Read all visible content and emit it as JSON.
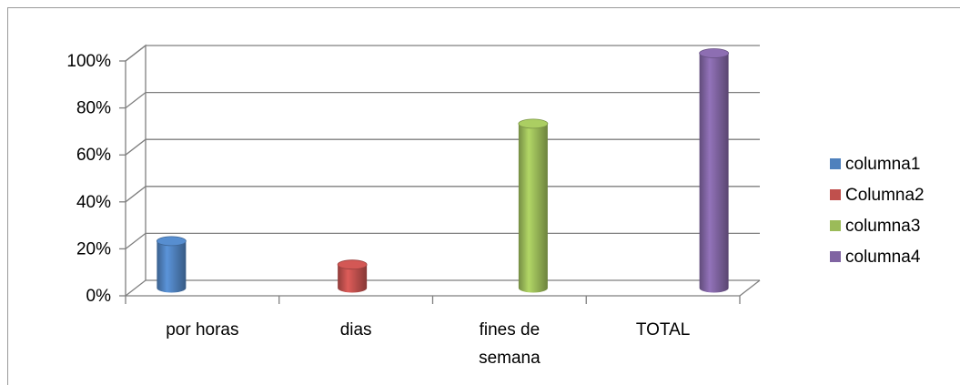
{
  "chart_data": {
    "type": "bar3d",
    "categories": [
      "por horas",
      "dias",
      "fines de semana",
      "TOTAL"
    ],
    "series": [
      {
        "name": "columna1",
        "color": "#4f81bd",
        "values": [
          20,
          null,
          null,
          null
        ]
      },
      {
        "name": "Columna2",
        "color": "#c0504d",
        "values": [
          null,
          10,
          null,
          null
        ]
      },
      {
        "name": "columna3",
        "color": "#9bbb59",
        "values": [
          null,
          null,
          70,
          null
        ]
      },
      {
        "name": "columna4",
        "color": "#8064a2",
        "values": [
          null,
          null,
          null,
          100
        ]
      }
    ],
    "ylim": [
      0,
      100
    ],
    "yticks": [
      {
        "value": 0,
        "label": "0%"
      },
      {
        "value": 20,
        "label": "20%"
      },
      {
        "value": 40,
        "label": "40%"
      },
      {
        "value": 60,
        "label": "60%"
      },
      {
        "value": 80,
        "label": "80%"
      },
      {
        "value": 100,
        "label": "100%"
      }
    ],
    "grid": true,
    "legend": "right"
  }
}
